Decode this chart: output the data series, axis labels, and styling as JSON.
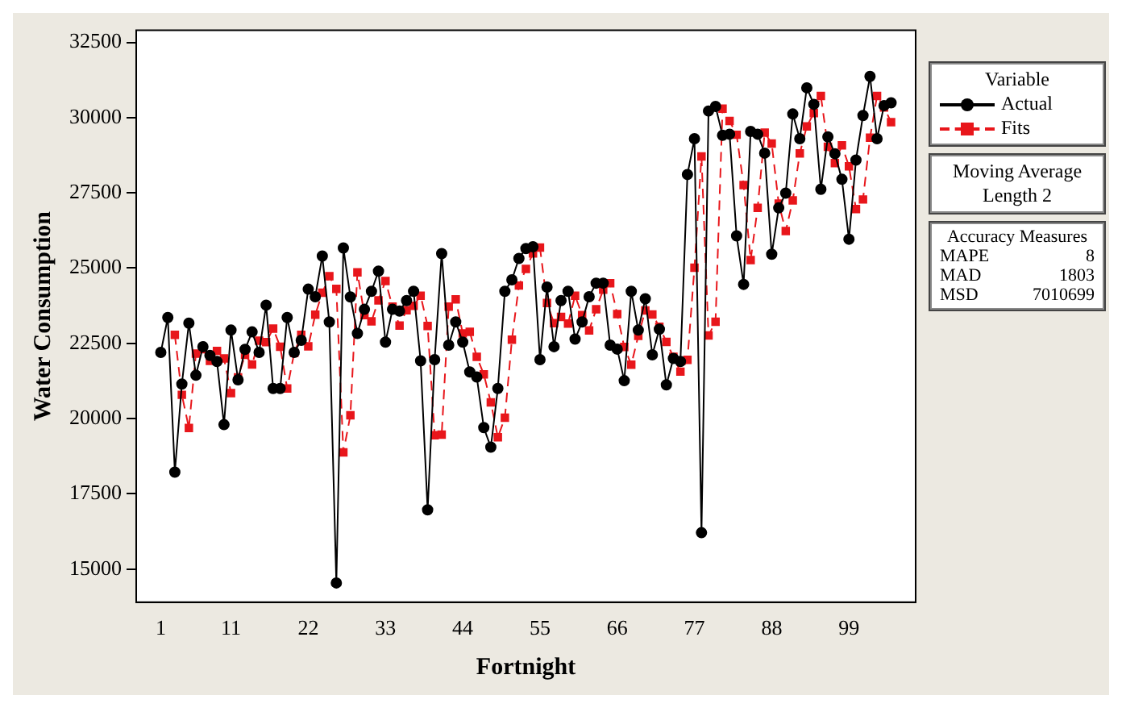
{
  "chart_data": {
    "type": "line",
    "xlabel": "Fortnight",
    "ylabel": "Water Consumption",
    "legend_title": "Variable",
    "legend": "right",
    "grid": false,
    "x": [
      1,
      2,
      3,
      4,
      5,
      6,
      7,
      8,
      9,
      10,
      11,
      12,
      13,
      14,
      15,
      16,
      17,
      18,
      19,
      20,
      21,
      22,
      23,
      24,
      25,
      26,
      27,
      28,
      29,
      30,
      31,
      32,
      33,
      34,
      35,
      36,
      37,
      38,
      39,
      40,
      41,
      42,
      43,
      44,
      45,
      46,
      47,
      48,
      49,
      50,
      51,
      52,
      53,
      54,
      55,
      56,
      57,
      58,
      59,
      60,
      61,
      62,
      63,
      64,
      65,
      66,
      67,
      68,
      69,
      70,
      71,
      72,
      73,
      74,
      75,
      76,
      77,
      78,
      79,
      80,
      81,
      82,
      83,
      84,
      85,
      86,
      87,
      88,
      89,
      90,
      91,
      92,
      93,
      94,
      95,
      96,
      97,
      98,
      99,
      100,
      101,
      102,
      103,
      104,
      105
    ],
    "xlim": [
      -2.5,
      108.5
    ],
    "xticks": [
      1,
      11,
      22,
      33,
      44,
      55,
      66,
      77,
      88,
      99
    ],
    "ylim": [
      13900,
      32900
    ],
    "yticks": [
      15000,
      17500,
      20000,
      22500,
      25000,
      27500,
      30000,
      32500
    ],
    "series": [
      {
        "name": "Actual",
        "color": "#000000",
        "marker": "circle",
        "line_style": "solid",
        "values": [
          22200,
          23360,
          18220,
          21150,
          23170,
          21440,
          22390,
          22100,
          21900,
          19800,
          22940,
          21290,
          22300,
          22880,
          22200,
          23770,
          21000,
          21000,
          23360,
          22200,
          22600,
          24300,
          24050,
          25400,
          23210,
          14540,
          25670,
          24040,
          22830,
          23630,
          24230,
          24900,
          22540,
          23630,
          23570,
          23920,
          24230,
          21920,
          16970,
          21960,
          25480,
          22440,
          23210,
          22540,
          21550,
          21380,
          19700,
          19050,
          21000,
          24230,
          24610,
          25320,
          25650,
          25710,
          21960,
          24370,
          22390,
          23920,
          24230,
          22640,
          23210,
          24050,
          24500,
          24500,
          22440,
          22310,
          21260,
          24230,
          22940,
          23980,
          22120,
          22970,
          21120,
          22000,
          21900,
          28110,
          29300,
          16210,
          30220,
          30370,
          29410,
          29450,
          26070,
          24460,
          29540,
          29450,
          28820,
          25460,
          27000,
          27490,
          30120,
          29300,
          30990,
          30440,
          27620,
          29360,
          28800,
          27950,
          25960,
          28590,
          30070,
          31370,
          29300,
          30400,
          30490
        ]
      },
      {
        "name": "Fits",
        "color": "#e8161b",
        "marker": "square",
        "line_style": "dashed",
        "values": [
          null,
          null,
          22780,
          20790,
          19690,
          22160,
          22310,
          21920,
          22250,
          22000,
          20850,
          21370,
          22120,
          21800,
          22590,
          22540,
          22990,
          22390,
          21000,
          22180,
          22780,
          22400,
          23450,
          24180,
          24730,
          24310,
          18880,
          20110,
          24860,
          23440,
          23230,
          23930,
          24570,
          23720,
          23090,
          23600,
          23750,
          24080,
          23080,
          19450,
          19470,
          23720,
          23960,
          22830,
          22880,
          22050,
          21470,
          20540,
          19380,
          20030,
          22620,
          24420,
          24970,
          25490,
          25680,
          23840,
          23170,
          23380,
          23160,
          24080,
          23440,
          22930,
          23630,
          24280,
          24500,
          23470,
          22380,
          21790,
          22750,
          23590,
          23460,
          23050,
          22550,
          22050,
          21560,
          21950,
          25010,
          28710,
          22760,
          23220,
          30300,
          29890,
          29430,
          27760,
          25270,
          27000,
          29500,
          29140,
          27140,
          26230,
          27250,
          28810,
          29710,
          30150,
          30720,
          29030,
          28490,
          29080,
          28380,
          26960,
          27280,
          29330,
          30720,
          30340,
          29850
        ]
      }
    ],
    "annotations": [
      "Moving Average",
      "Length 2",
      "Accuracy Measures",
      "MAPE 8",
      "MAD 1803",
      "MSD 7010699"
    ]
  }
}
